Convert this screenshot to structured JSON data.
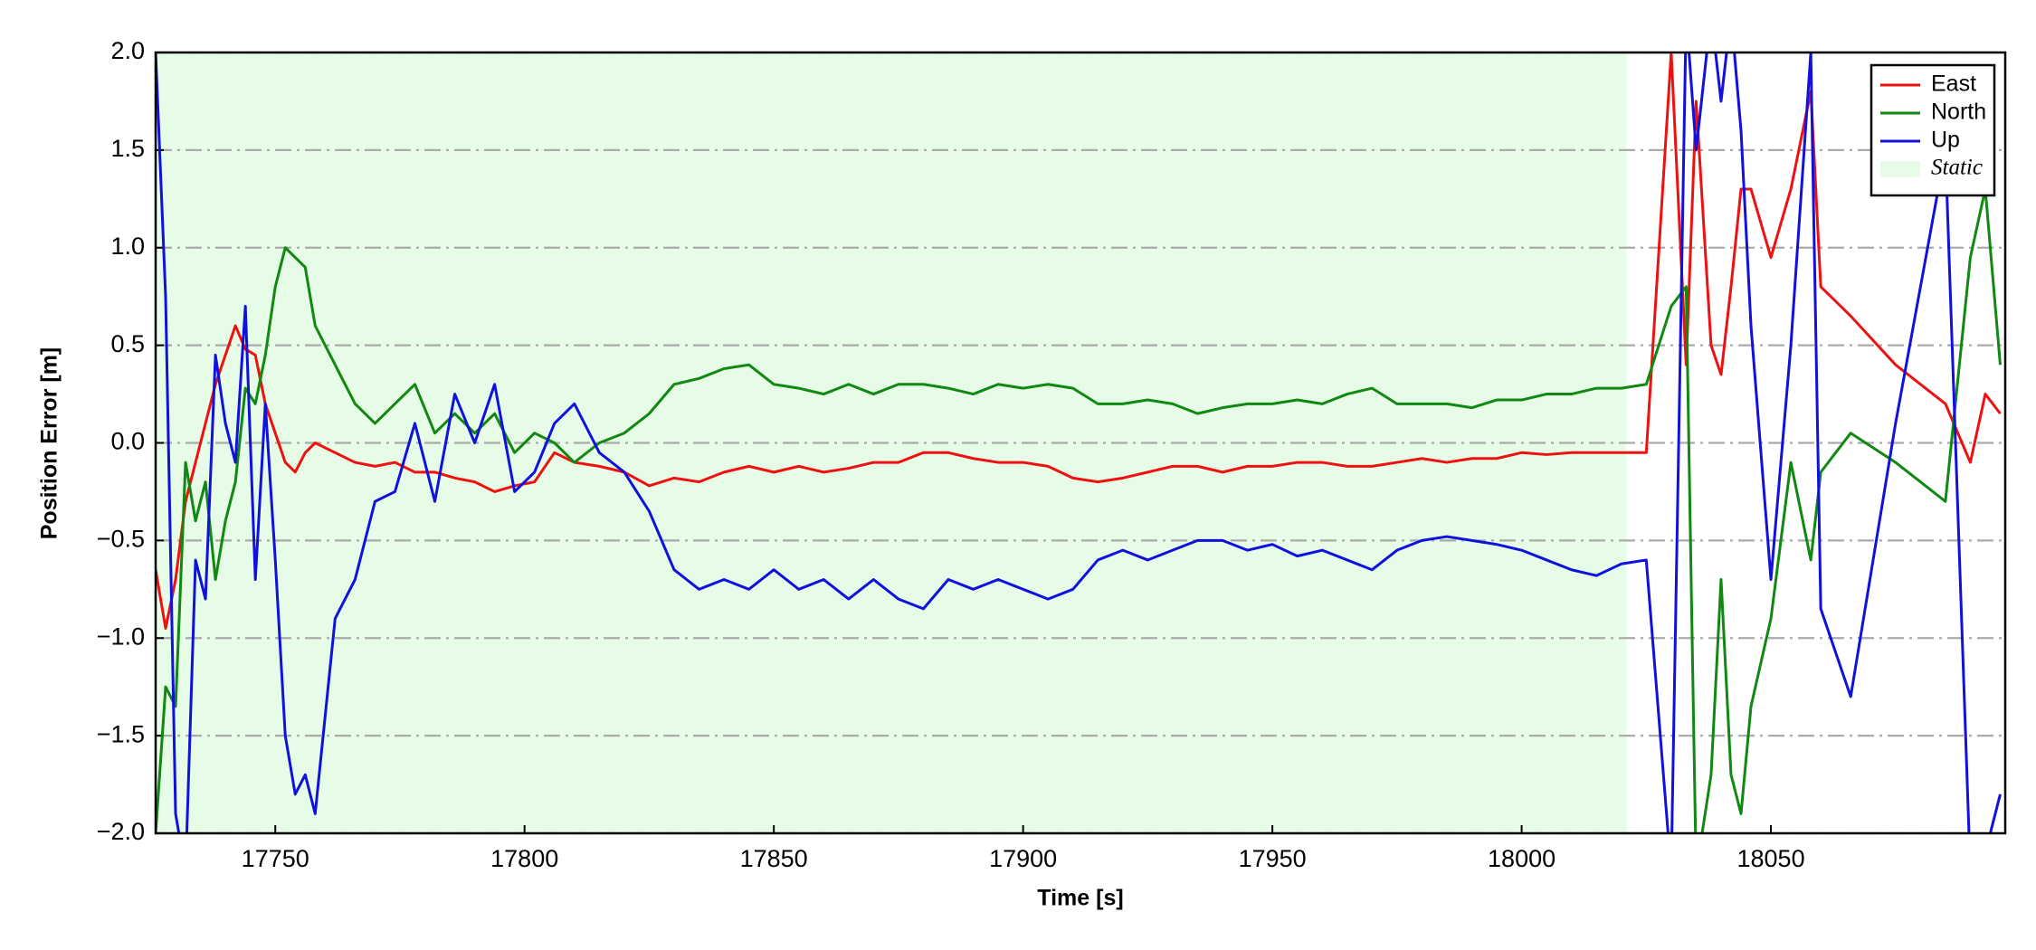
{
  "chart_data": {
    "type": "line",
    "x_label": "Time [s]",
    "y_label": "Position Error [m]",
    "xlim": [
      17726,
      18097
    ],
    "ylim": [
      -2.0,
      2.0
    ],
    "xticks": [
      17750,
      17800,
      17850,
      17900,
      17950,
      18000,
      18050
    ],
    "yticks": [
      {
        "value": -2.0,
        "label": "−2.0"
      },
      {
        "value": -1.5,
        "label": "−1.5"
      },
      {
        "value": -1.0,
        "label": "−1.0"
      },
      {
        "value": -0.5,
        "label": "−0.5"
      },
      {
        "value": 0.0,
        "label": "0.0"
      },
      {
        "value": 0.5,
        "label": "0.5"
      },
      {
        "value": 1.0,
        "label": "1.0"
      },
      {
        "value": 1.5,
        "label": "1.5"
      },
      {
        "value": 2.0,
        "label": "2.0"
      }
    ],
    "grid": true,
    "legend": "upper right",
    "shaded_region": {
      "name": "Static",
      "xlim": [
        17726,
        18021
      ],
      "color": "#e6fce6"
    },
    "x": [
      17726,
      17728,
      17730,
      17732,
      17734,
      17736,
      17738,
      17740,
      17742,
      17744,
      17746,
      17748,
      17750,
      17752,
      17754,
      17756,
      17758,
      17762,
      17766,
      17770,
      17774,
      17778,
      17782,
      17786,
      17790,
      17794,
      17798,
      17802,
      17806,
      17810,
      17815,
      17820,
      17825,
      17830,
      17835,
      17840,
      17845,
      17850,
      17855,
      17860,
      17865,
      17870,
      17875,
      17880,
      17885,
      17890,
      17895,
      17900,
      17905,
      17910,
      17915,
      17920,
      17925,
      17930,
      17935,
      17940,
      17945,
      17950,
      17955,
      17960,
      17965,
      17970,
      17975,
      17980,
      17985,
      17990,
      17995,
      18000,
      18005,
      18010,
      18015,
      18020,
      18025,
      18030,
      18033,
      18035,
      18038,
      18040,
      18042,
      18044,
      18046,
      18050,
      18054,
      18058,
      18060,
      18066,
      18075,
      18085,
      18090,
      18093,
      18096
    ],
    "series": [
      {
        "name": "East",
        "color": "#ee1111",
        "values": [
          -0.65,
          -0.95,
          -0.7,
          -0.3,
          -0.1,
          0.1,
          0.3,
          0.45,
          0.6,
          0.48,
          0.45,
          0.2,
          0.05,
          -0.1,
          -0.15,
          -0.05,
          0.0,
          -0.05,
          -0.1,
          -0.12,
          -0.1,
          -0.15,
          -0.15,
          -0.18,
          -0.2,
          -0.25,
          -0.22,
          -0.2,
          -0.05,
          -0.1,
          -0.12,
          -0.15,
          -0.22,
          -0.18,
          -0.2,
          -0.15,
          -0.12,
          -0.15,
          -0.12,
          -0.15,
          -0.13,
          -0.1,
          -0.1,
          -0.05,
          -0.05,
          -0.08,
          -0.1,
          -0.1,
          -0.12,
          -0.18,
          -0.2,
          -0.18,
          -0.15,
          -0.12,
          -0.12,
          -0.15,
          -0.12,
          -0.12,
          -0.1,
          -0.1,
          -0.12,
          -0.12,
          -0.1,
          -0.08,
          -0.1,
          -0.08,
          -0.08,
          -0.05,
          -0.06,
          -0.05,
          -0.05,
          -0.05,
          -0.05,
          2.0,
          0.4,
          1.75,
          0.5,
          0.35,
          0.8,
          1.3,
          1.3,
          0.95,
          1.3,
          1.8,
          0.8,
          0.65,
          0.4,
          0.2,
          -0.1,
          0.25,
          0.15
        ]
      },
      {
        "name": "North",
        "color": "#118811",
        "values": [
          -2.0,
          -1.25,
          -1.35,
          -0.1,
          -0.4,
          -0.2,
          -0.7,
          -0.4,
          -0.2,
          0.28,
          0.2,
          0.45,
          0.8,
          1.0,
          0.95,
          0.9,
          0.6,
          0.4,
          0.2,
          0.1,
          0.2,
          0.3,
          0.05,
          0.15,
          0.05,
          0.15,
          -0.05,
          0.05,
          0.0,
          -0.1,
          0.0,
          0.05,
          0.15,
          0.3,
          0.33,
          0.38,
          0.4,
          0.3,
          0.28,
          0.25,
          0.3,
          0.25,
          0.3,
          0.3,
          0.28,
          0.25,
          0.3,
          0.28,
          0.3,
          0.28,
          0.2,
          0.2,
          0.22,
          0.2,
          0.15,
          0.18,
          0.2,
          0.2,
          0.22,
          0.2,
          0.25,
          0.28,
          0.2,
          0.2,
          0.2,
          0.18,
          0.22,
          0.22,
          0.25,
          0.25,
          0.28,
          0.28,
          0.3,
          0.7,
          0.8,
          -2.2,
          -1.7,
          -0.7,
          -1.7,
          -1.9,
          -1.35,
          -0.9,
          -0.1,
          -0.6,
          -0.15,
          0.05,
          -0.1,
          -0.3,
          0.95,
          1.3,
          0.4
        ]
      },
      {
        "name": "Up",
        "color": "#1111dd",
        "values": [
          2.0,
          0.75,
          -1.9,
          -2.2,
          -0.6,
          -0.8,
          0.45,
          0.1,
          -0.1,
          0.7,
          -0.7,
          0.2,
          -0.6,
          -1.5,
          -1.8,
          -1.7,
          -1.9,
          -0.9,
          -0.7,
          -0.3,
          -0.25,
          0.1,
          -0.3,
          0.25,
          0.0,
          0.3,
          -0.25,
          -0.15,
          0.1,
          0.2,
          -0.05,
          -0.15,
          -0.35,
          -0.65,
          -0.75,
          -0.7,
          -0.75,
          -0.65,
          -0.75,
          -0.7,
          -0.8,
          -0.7,
          -0.8,
          -0.85,
          -0.7,
          -0.75,
          -0.7,
          -0.75,
          -0.8,
          -0.75,
          -0.6,
          -0.55,
          -0.6,
          -0.55,
          -0.5,
          -0.5,
          -0.55,
          -0.52,
          -0.58,
          -0.55,
          -0.6,
          -0.65,
          -0.55,
          -0.5,
          -0.48,
          -0.5,
          -0.52,
          -0.55,
          -0.6,
          -0.65,
          -0.68,
          -0.62,
          -0.6,
          -2.2,
          2.2,
          1.5,
          2.2,
          1.75,
          2.2,
          1.6,
          0.6,
          -0.7,
          0.5,
          2.0,
          -0.85,
          -1.3,
          0.1,
          1.5,
          -2.2,
          -2.1,
          -1.8
        ]
      }
    ]
  }
}
